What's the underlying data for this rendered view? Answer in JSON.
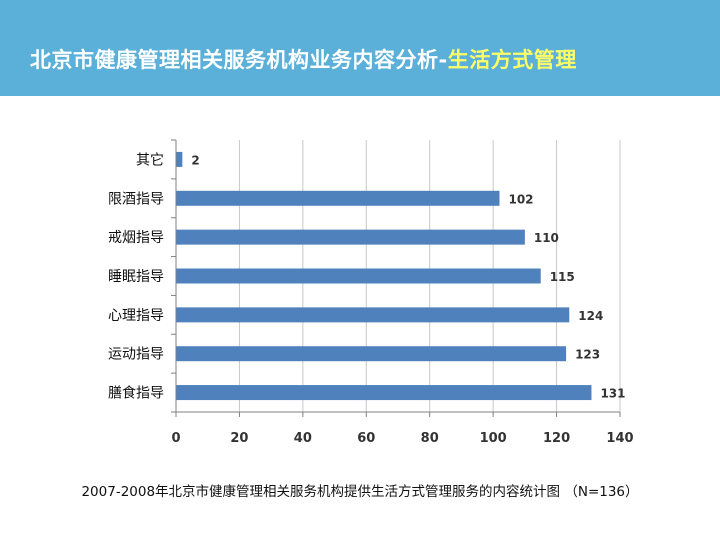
{
  "header": {
    "title_main": "北京市健康管理相关服务机构业务内容分析-",
    "title_accent": "生活方式管理",
    "background_color": "#5ab0d8",
    "accent_color": "#ffff66"
  },
  "caption": "2007-2008年北京市健康管理相关服务机构提供生活方式管理服务的内容统计图 （N=136）",
  "chart_data": {
    "type": "bar",
    "orientation": "horizontal",
    "categories": [
      "其它",
      "限酒指导",
      "戒烟指导",
      "睡眠指导",
      "心理指导",
      "运动指导",
      "膳食指导"
    ],
    "values": [
      2,
      102,
      110,
      115,
      124,
      123,
      131
    ],
    "xlim": [
      0,
      140
    ],
    "xticks": [
      0,
      20,
      40,
      60,
      80,
      100,
      120,
      140
    ],
    "grid": true,
    "bar_color": "#4f81bd",
    "data_labels": true
  }
}
